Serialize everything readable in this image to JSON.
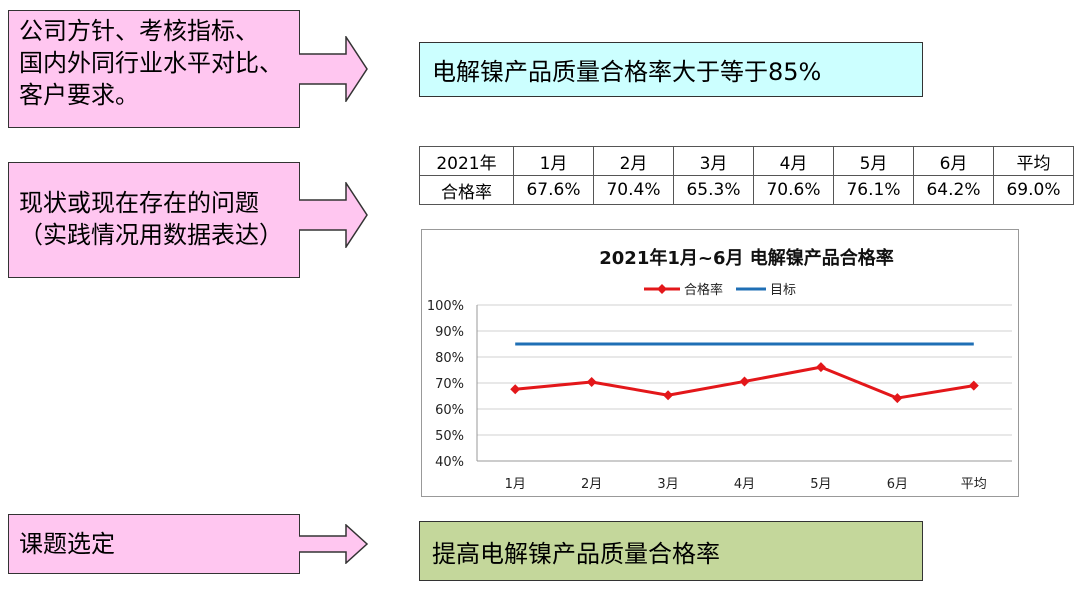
{
  "left_boxes": [
    {
      "lines": [
        "公司方针、考核指标、",
        "国内外同行业水平对比、",
        "客户要求。"
      ]
    },
    {
      "lines": [
        "现状或现在存在的问题",
        "（实践情况用数据表达）"
      ]
    },
    {
      "lines": [
        "课题选定"
      ]
    }
  ],
  "target_box": {
    "text": "电解镍产品质量合格率大于等于85%"
  },
  "topic_box": {
    "text": "提高电解镍产品质量合格率"
  },
  "table": {
    "header": [
      "2021年",
      "1月",
      "2月",
      "3月",
      "4月",
      "5月",
      "6月",
      "平均"
    ],
    "row": [
      "合格率",
      "67.6%",
      "70.4%",
      "65.3%",
      "70.6%",
      "76.1%",
      "64.2%",
      "69.0%"
    ]
  },
  "colors": {
    "box_pink": "#ffc6f0",
    "box_cyan": "#ccffff",
    "box_green": "#c4d79b",
    "series_red": "#e3171a",
    "series_blue": "#1f6fb5",
    "grid": "#d0d0d0"
  },
  "chart_data": {
    "type": "line",
    "title": "2021年1月~6月 电解镍产品合格率",
    "categories": [
      "1月",
      "2月",
      "3月",
      "4月",
      "5月",
      "6月",
      "平均"
    ],
    "series": [
      {
        "name": "合格率",
        "values": [
          67.6,
          70.4,
          65.3,
          70.6,
          76.1,
          64.2,
          69.0
        ],
        "marker": "diamond"
      },
      {
        "name": "目标",
        "values": [
          85,
          85,
          85,
          85,
          85,
          85,
          85
        ],
        "marker": "none"
      }
    ],
    "ylim": [
      40,
      100
    ],
    "yticks": [
      40,
      50,
      60,
      70,
      80,
      90,
      100
    ],
    "ytick_labels": [
      "40%",
      "50%",
      "60%",
      "70%",
      "80%",
      "90%",
      "100%"
    ],
    "grid": true,
    "legend": "top"
  }
}
